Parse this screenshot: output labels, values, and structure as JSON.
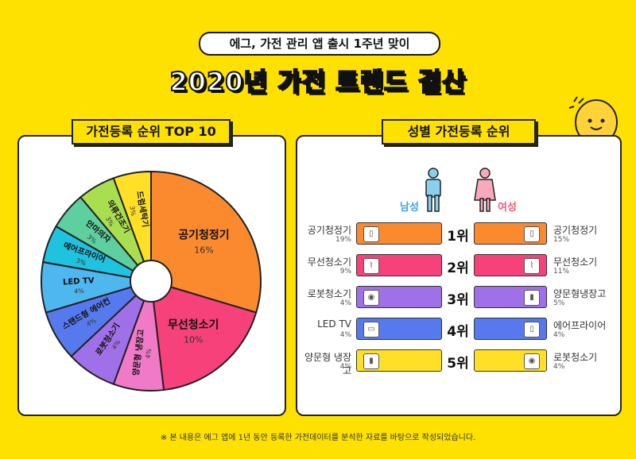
{
  "header": {
    "subtitle": "에그, 가전 관리 앱 출시 1주년 맞이",
    "title": "2020년 가전 트렌드 결산"
  },
  "left_panel": {
    "tab_label": "가전등록 순위 TOP 10",
    "pie_slices": [
      {
        "label": "공기청정기",
        "pct": "16%",
        "value": 16,
        "color": "#fb8a2e"
      },
      {
        "label": "무선청소기",
        "pct": "10%",
        "value": 10,
        "color": "#f7417a"
      },
      {
        "label": "양문형 냉장고",
        "pct": "4%",
        "value": 4,
        "color": "#f07ac7"
      },
      {
        "label": "로봇청소기",
        "pct": "4%",
        "value": 4,
        "color": "#a070e8"
      },
      {
        "label": "스탠드형 에어컨",
        "pct": "4%",
        "value": 4,
        "color": "#5779ee"
      },
      {
        "label": "LED TV",
        "pct": "4%",
        "value": 4,
        "color": "#4fb7ef"
      },
      {
        "label": "에어프라이어",
        "pct": "3%",
        "value": 3,
        "color": "#1fc3e0"
      },
      {
        "label": "안마의자",
        "pct": "3%",
        "value": 3,
        "color": "#5ed0a0"
      },
      {
        "label": "의류건조기",
        "pct": "3%",
        "value": 3,
        "color": "#a9de50"
      },
      {
        "label": "드럼세탁기",
        "pct": "3%",
        "value": 3,
        "color": "#ffe026"
      }
    ]
  },
  "right_panel": {
    "tab_label": "성별 가전등록 순위",
    "male_label": "남성",
    "female_label": "여성",
    "male_color": "#3aa3e8",
    "female_color": "#f25a7a",
    "rows": [
      {
        "rank": "1위",
        "male_item": "공기청정기",
        "male_pct": "19%",
        "male_color": "#fb8a2e",
        "female_item": "공기청정기",
        "female_pct": "15%",
        "female_color": "#fb8a2e"
      },
      {
        "rank": "2위",
        "male_item": "무선청소기",
        "male_pct": "9%",
        "male_color": "#f7417a",
        "female_item": "무선청소기",
        "female_pct": "11%",
        "female_color": "#f7417a"
      },
      {
        "rank": "3위",
        "male_item": "로봇청소기",
        "male_pct": "4%",
        "male_color": "#a070e8",
        "female_item": "양문형냉장고",
        "female_pct": "5%",
        "female_color": "#a070e8"
      },
      {
        "rank": "4위",
        "male_item": "LED TV",
        "male_pct": "4%",
        "male_color": "#5779ee",
        "female_item": "에어프라이어",
        "female_pct": "4%",
        "female_color": "#5779ee"
      },
      {
        "rank": "5위",
        "male_item": "양문형 냉장고",
        "male_pct": "4%",
        "male_color": "#ffe026",
        "female_item": "로봇청소기",
        "female_pct": "4%",
        "female_color": "#ffe026"
      }
    ]
  },
  "footer": {
    "note": "※ 본 내용은 에그 앱에 1년 동안 등록한 가전데이터를 분석한 자료를 바탕으로 작성되었습니다."
  }
}
